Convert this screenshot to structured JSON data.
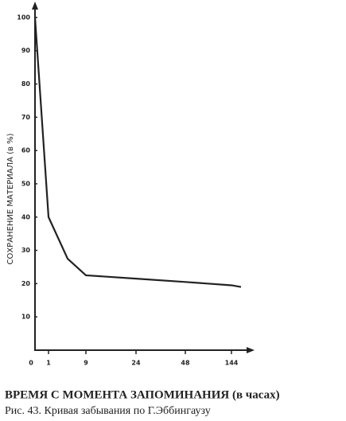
{
  "chart_data": {
    "type": "line",
    "ylabel": "СОХРАНЕНИЕ МАТЕРИАЛА (в %)",
    "xlabel": "ВРЕМЯ С МОМЕНТА ЗАПОМИНАНИЯ (в часах)",
    "categories": [
      "0",
      "1",
      null,
      "9",
      "24",
      "48",
      "144",
      null
    ],
    "values": [
      100,
      40,
      27.5,
      22.5,
      21.5,
      20.5,
      19.5,
      19
    ],
    "color": "#222222",
    "ylim": [
      0,
      105
    ],
    "yticks": [
      10,
      20,
      30,
      40,
      50,
      60,
      70,
      80,
      90,
      100
    ]
  },
  "caption": "Рис. 43. Кривая забывания по Г.Эббингаузу"
}
